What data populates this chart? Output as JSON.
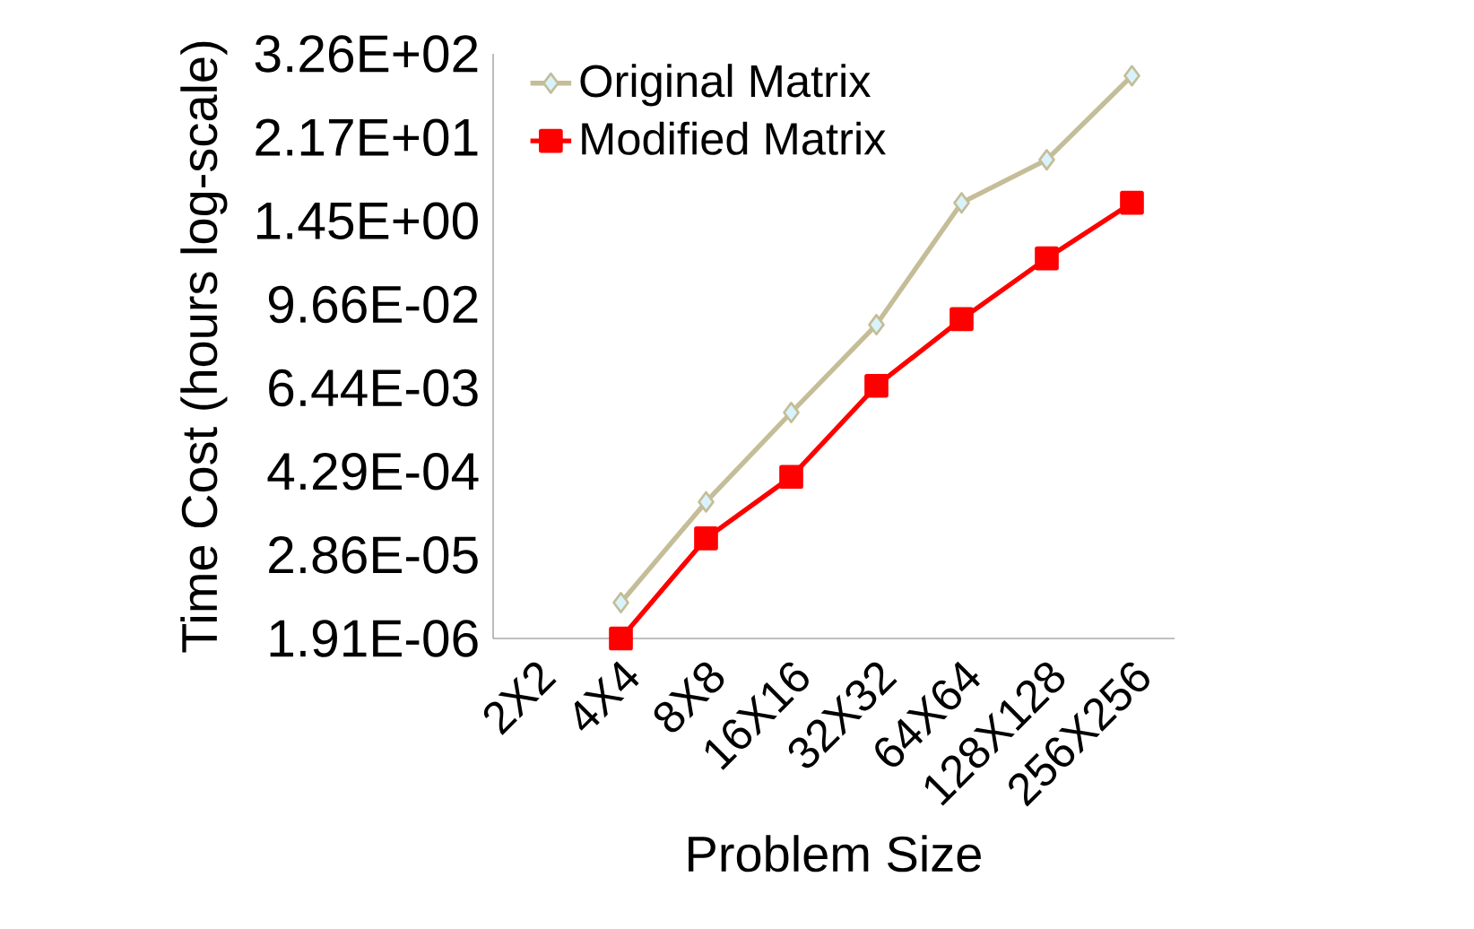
{
  "chart_data": {
    "type": "line",
    "xlabel": "Problem Size",
    "ylabel": "Time Cost (hours log-scale)",
    "categories": [
      "2X2",
      "4X4",
      "8X8",
      "16X16",
      "32X32",
      "64X64",
      "128X128",
      "256X256"
    ],
    "series": [
      {
        "name": "Original Matrix",
        "color": "#c4bd97",
        "marker": "diamond",
        "values": [
          null,
          6.1e-06,
          0.00016,
          0.0029,
          0.05,
          2.6,
          10.5,
          160
        ]
      },
      {
        "name": "Modified Matrix",
        "color": "#ff0000",
        "marker": "square",
        "values": [
          null,
          1.91e-06,
          4.9e-05,
          0.00036,
          0.0069,
          0.06,
          0.43,
          2.6
        ]
      }
    ],
    "log": "y",
    "ylim": [
      1.91e-06,
      326
    ],
    "yticks": [
      {
        "value": 1.91e-06,
        "label": "1.91E-06"
      },
      {
        "value": 2.86e-05,
        "label": "2.86E-05"
      },
      {
        "value": 0.000429,
        "label": "4.29E-04"
      },
      {
        "value": 0.00644,
        "label": "6.44E-03"
      },
      {
        "value": 0.0966,
        "label": "9.66E-02"
      },
      {
        "value": 1.45,
        "label": "1.45E+00"
      },
      {
        "value": 21.7,
        "label": "2.17E+01"
      },
      {
        "value": 326,
        "label": "3.26E+02"
      }
    ],
    "grid": false,
    "legend": "top left",
    "line_style": "solid"
  }
}
